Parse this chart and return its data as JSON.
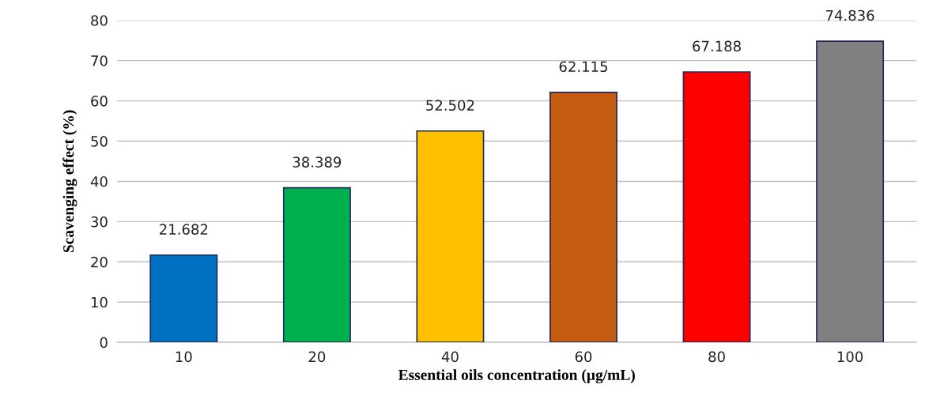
{
  "chart_data": {
    "type": "bar",
    "xlabel": "Essential oils concentration (µg/mL)",
    "ylabel": "Scavenging effect (%)",
    "categories": [
      "10",
      "20",
      "40",
      "60",
      "80",
      "100"
    ],
    "values": [
      21.682,
      38.389,
      52.502,
      62.115,
      67.188,
      74.836
    ],
    "colors": [
      "#0070c0",
      "#00b050",
      "#ffc000",
      "#c55a11",
      "#ff0000",
      "#808080"
    ],
    "ylim": [
      0,
      80
    ],
    "yticks": [
      0,
      10,
      20,
      30,
      40,
      50,
      60,
      70,
      80
    ],
    "grid": "y",
    "data_labels": true
  }
}
